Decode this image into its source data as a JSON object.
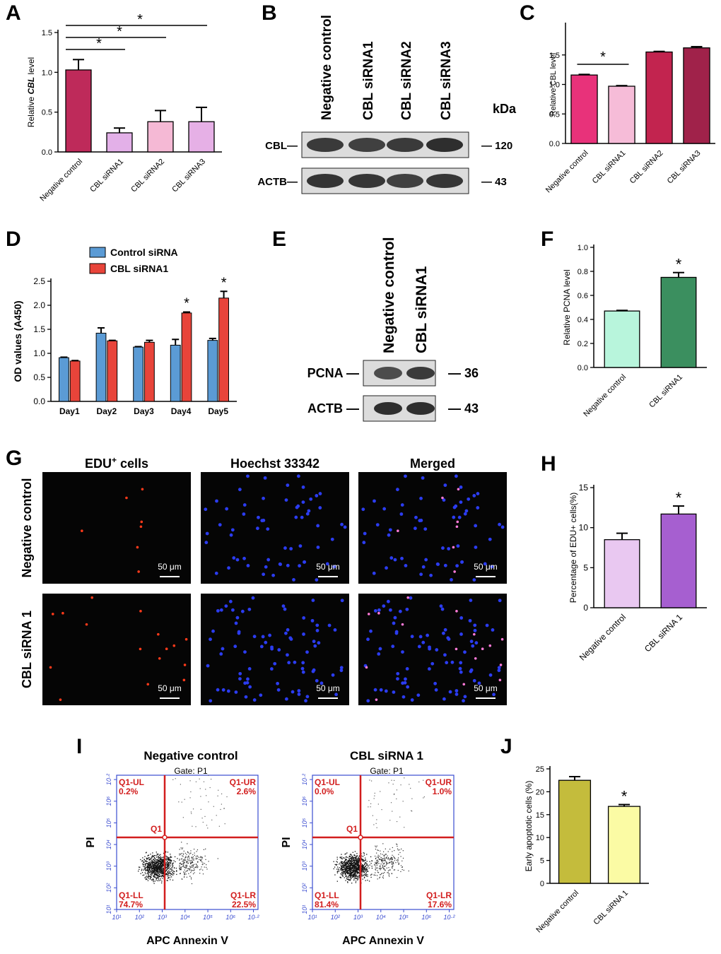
{
  "panels": {
    "A": "A",
    "B": "B",
    "C": "C",
    "D": "D",
    "E": "E",
    "F": "F",
    "G": "G",
    "H": "H",
    "I": "I",
    "J": "J"
  },
  "chart_data": [
    {
      "id": "A",
      "type": "bar",
      "ylabel_prefix": "Relative ",
      "ylabel_italic": "CBL",
      "ylabel_suffix": " level",
      "categories": [
        "Negative control",
        "CBL siRNA1",
        "CBL siRNA2",
        "CBL siRNA3"
      ],
      "values": [
        1.03,
        0.24,
        0.38,
        0.38
      ],
      "errors": [
        0.13,
        0.06,
        0.14,
        0.18
      ],
      "colors": [
        "#be2a5a",
        "#e3b0e8",
        "#f5b9d5",
        "#e6b0e6"
      ],
      "ylim": [
        0,
        1.5
      ],
      "yticks": [
        "0.0",
        "0.5",
        "1.0",
        "1.5"
      ],
      "significance": [
        {
          "from": 0,
          "to": 1,
          "label": "*"
        },
        {
          "from": 0,
          "to": 2,
          "label": "*"
        },
        {
          "from": 0,
          "to": 3,
          "label": "*"
        }
      ]
    },
    {
      "id": "C",
      "type": "bar",
      "ylabel": "Relative CBL level",
      "categories": [
        "Negative control",
        "CBL siRNA1",
        "CBL siRNA2",
        "CBL siRNA3"
      ],
      "values": [
        1.16,
        0.97,
        1.55,
        1.62
      ],
      "errors": [
        0.01,
        0.01,
        0.01,
        0.02
      ],
      "colors": [
        "#e8327a",
        "#f6bcd8",
        "#c2244f",
        "#a0224a"
      ],
      "ylim": [
        0,
        2.0
      ],
      "yticks": [
        "0.0",
        "0.5",
        "1.0",
        "1.5"
      ],
      "significance": [
        {
          "from": 0,
          "to": 1,
          "label": "*"
        }
      ]
    },
    {
      "id": "D",
      "type": "bar",
      "ylabel": "OD values (A450)",
      "categories": [
        "Day1",
        "Day2",
        "Day3",
        "Day4",
        "Day5"
      ],
      "series": [
        {
          "name": "Control siRNA",
          "color": "#5b9bd5",
          "values": [
            0.91,
            1.42,
            1.13,
            1.17,
            1.27
          ],
          "errors": [
            0.01,
            0.11,
            0.01,
            0.12,
            0.04
          ]
        },
        {
          "name": "CBL siRNA1",
          "color": "#e8443a",
          "values": [
            0.84,
            1.26,
            1.23,
            1.84,
            2.15
          ],
          "errors": [
            0.01,
            0.01,
            0.04,
            0.02,
            0.14
          ]
        }
      ],
      "stars": [
        "",
        "",
        "",
        "*",
        "*"
      ],
      "ylim": [
        0,
        2.5
      ],
      "yticks": [
        "0.0",
        "0.5",
        "1.0",
        "1.5",
        "2.0",
        "2.5"
      ],
      "legend_position": "top-left"
    },
    {
      "id": "F",
      "type": "bar",
      "ylabel": "Relative PCNA level",
      "categories": [
        "Negative control",
        "CBL siRNA1"
      ],
      "values": [
        0.47,
        0.75
      ],
      "errors": [
        0.005,
        0.04
      ],
      "colors": [
        "#b8f5dc",
        "#3b8f5f"
      ],
      "stars": [
        "",
        "*"
      ],
      "ylim": [
        0,
        1.0
      ],
      "yticks": [
        "0.0",
        "0.2",
        "0.4",
        "0.6",
        "0.8",
        "1.0"
      ]
    },
    {
      "id": "H",
      "type": "bar",
      "ylabel": "Percentage of EDU+ cells(%)",
      "categories": [
        "Negative control",
        "CBL siRNA 1"
      ],
      "values": [
        8.5,
        11.7
      ],
      "errors": [
        0.8,
        1.0
      ],
      "colors": [
        "#e9c8f1",
        "#a65fd0"
      ],
      "stars": [
        "",
        "*"
      ],
      "ylim": [
        0,
        15
      ],
      "yticks": [
        "0",
        "5",
        "10",
        "15"
      ]
    },
    {
      "id": "J",
      "type": "bar",
      "ylabel": "Early apoptotic cells (%)",
      "categories": [
        "Negative control",
        "CBL siRNA 1"
      ],
      "values": [
        22.5,
        16.8
      ],
      "errors": [
        0.8,
        0.4
      ],
      "colors": [
        "#c4bc3c",
        "#fbfba4"
      ],
      "stars": [
        "",
        "*"
      ],
      "ylim": [
        0,
        25
      ],
      "yticks": [
        "0",
        "5",
        "10",
        "15",
        "20",
        "25"
      ]
    }
  ],
  "blot_B": {
    "lanes": [
      "Negative control",
      "CBL siRNA1",
      "CBL siRNA2",
      "CBL siRNA3"
    ],
    "kda_label": "kDa",
    "rows": [
      {
        "label": "CBL—",
        "size": "— 120",
        "intensity": [
          0.85,
          0.8,
          0.85,
          0.95
        ]
      },
      {
        "label": "ACTB—",
        "size": "— 43",
        "intensity": [
          0.9,
          0.88,
          0.8,
          0.88
        ]
      }
    ]
  },
  "blot_E": {
    "lanes": [
      "Negative control",
      "CBL siRNA1"
    ],
    "rows": [
      {
        "label": "PCNA —",
        "size": "— 36",
        "intensity": [
          0.7,
          0.85
        ]
      },
      {
        "label": "ACTB —",
        "size": "— 43",
        "intensity": [
          0.95,
          0.95
        ]
      }
    ]
  },
  "microscopy_G": {
    "columns": [
      "EDU",
      "Hoechst 33342",
      "Merged"
    ],
    "edu_superscript": "+",
    "edu_suffix": " cells",
    "rows": [
      "Negative control",
      "CBL siRNA 1"
    ],
    "scale_bar": "50 μm"
  },
  "flow_I": {
    "plots": [
      {
        "title": "Negative control",
        "q_ul": "0.2%",
        "q_ur": "2.6%",
        "q_ll": "74.7%",
        "q_lr": "22.5%"
      },
      {
        "title": "CBL siRNA 1",
        "q_ul": "0.0%",
        "q_ur": "1.0%",
        "q_ll": "81.4%",
        "q_lr": "17.6%"
      }
    ],
    "gate": "Gate: P1",
    "center_label": "Q1",
    "ul_label": "Q1-UL",
    "ur_label": "Q1-UR",
    "ll_label": "Q1-LL",
    "lr_label": "Q1-LR",
    "xlabel": "APC Annexin V",
    "ylabel": "PI",
    "ticks": [
      "10¹",
      "10²",
      "10³",
      "10⁴",
      "10⁵",
      "10⁶",
      "10·²"
    ]
  }
}
